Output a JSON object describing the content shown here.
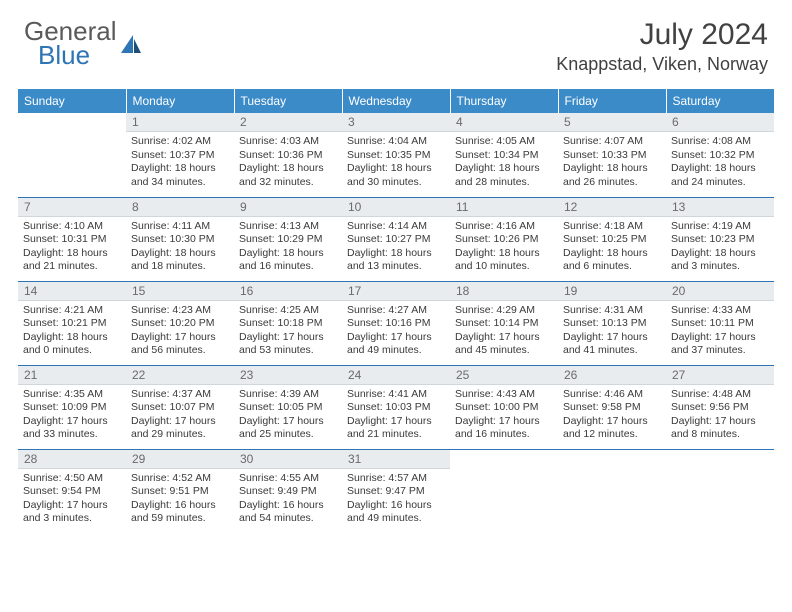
{
  "brand": {
    "part1": "General",
    "part2": "Blue"
  },
  "title": "July 2024",
  "location": "Knappstad, Viken, Norway",
  "colors": {
    "header_bg": "#3b8bc9",
    "accent_blue": "#2e75b6",
    "daynum_bg": "#e8ecef",
    "text_dark": "#414141",
    "text_gray": "#5a5a5a"
  },
  "weekdays": [
    "Sunday",
    "Monday",
    "Tuesday",
    "Wednesday",
    "Thursday",
    "Friday",
    "Saturday"
  ],
  "weeks": [
    [
      {
        "n": "",
        "lines": []
      },
      {
        "n": "1",
        "lines": [
          "Sunrise: 4:02 AM",
          "Sunset: 10:37 PM",
          "Daylight: 18 hours",
          "and 34 minutes."
        ]
      },
      {
        "n": "2",
        "lines": [
          "Sunrise: 4:03 AM",
          "Sunset: 10:36 PM",
          "Daylight: 18 hours",
          "and 32 minutes."
        ]
      },
      {
        "n": "3",
        "lines": [
          "Sunrise: 4:04 AM",
          "Sunset: 10:35 PM",
          "Daylight: 18 hours",
          "and 30 minutes."
        ]
      },
      {
        "n": "4",
        "lines": [
          "Sunrise: 4:05 AM",
          "Sunset: 10:34 PM",
          "Daylight: 18 hours",
          "and 28 minutes."
        ]
      },
      {
        "n": "5",
        "lines": [
          "Sunrise: 4:07 AM",
          "Sunset: 10:33 PM",
          "Daylight: 18 hours",
          "and 26 minutes."
        ]
      },
      {
        "n": "6",
        "lines": [
          "Sunrise: 4:08 AM",
          "Sunset: 10:32 PM",
          "Daylight: 18 hours",
          "and 24 minutes."
        ]
      }
    ],
    [
      {
        "n": "7",
        "lines": [
          "Sunrise: 4:10 AM",
          "Sunset: 10:31 PM",
          "Daylight: 18 hours",
          "and 21 minutes."
        ]
      },
      {
        "n": "8",
        "lines": [
          "Sunrise: 4:11 AM",
          "Sunset: 10:30 PM",
          "Daylight: 18 hours",
          "and 18 minutes."
        ]
      },
      {
        "n": "9",
        "lines": [
          "Sunrise: 4:13 AM",
          "Sunset: 10:29 PM",
          "Daylight: 18 hours",
          "and 16 minutes."
        ]
      },
      {
        "n": "10",
        "lines": [
          "Sunrise: 4:14 AM",
          "Sunset: 10:27 PM",
          "Daylight: 18 hours",
          "and 13 minutes."
        ]
      },
      {
        "n": "11",
        "lines": [
          "Sunrise: 4:16 AM",
          "Sunset: 10:26 PM",
          "Daylight: 18 hours",
          "and 10 minutes."
        ]
      },
      {
        "n": "12",
        "lines": [
          "Sunrise: 4:18 AM",
          "Sunset: 10:25 PM",
          "Daylight: 18 hours",
          "and 6 minutes."
        ]
      },
      {
        "n": "13",
        "lines": [
          "Sunrise: 4:19 AM",
          "Sunset: 10:23 PM",
          "Daylight: 18 hours",
          "and 3 minutes."
        ]
      }
    ],
    [
      {
        "n": "14",
        "lines": [
          "Sunrise: 4:21 AM",
          "Sunset: 10:21 PM",
          "Daylight: 18 hours",
          "and 0 minutes."
        ]
      },
      {
        "n": "15",
        "lines": [
          "Sunrise: 4:23 AM",
          "Sunset: 10:20 PM",
          "Daylight: 17 hours",
          "and 56 minutes."
        ]
      },
      {
        "n": "16",
        "lines": [
          "Sunrise: 4:25 AM",
          "Sunset: 10:18 PM",
          "Daylight: 17 hours",
          "and 53 minutes."
        ]
      },
      {
        "n": "17",
        "lines": [
          "Sunrise: 4:27 AM",
          "Sunset: 10:16 PM",
          "Daylight: 17 hours",
          "and 49 minutes."
        ]
      },
      {
        "n": "18",
        "lines": [
          "Sunrise: 4:29 AM",
          "Sunset: 10:14 PM",
          "Daylight: 17 hours",
          "and 45 minutes."
        ]
      },
      {
        "n": "19",
        "lines": [
          "Sunrise: 4:31 AM",
          "Sunset: 10:13 PM",
          "Daylight: 17 hours",
          "and 41 minutes."
        ]
      },
      {
        "n": "20",
        "lines": [
          "Sunrise: 4:33 AM",
          "Sunset: 10:11 PM",
          "Daylight: 17 hours",
          "and 37 minutes."
        ]
      }
    ],
    [
      {
        "n": "21",
        "lines": [
          "Sunrise: 4:35 AM",
          "Sunset: 10:09 PM",
          "Daylight: 17 hours",
          "and 33 minutes."
        ]
      },
      {
        "n": "22",
        "lines": [
          "Sunrise: 4:37 AM",
          "Sunset: 10:07 PM",
          "Daylight: 17 hours",
          "and 29 minutes."
        ]
      },
      {
        "n": "23",
        "lines": [
          "Sunrise: 4:39 AM",
          "Sunset: 10:05 PM",
          "Daylight: 17 hours",
          "and 25 minutes."
        ]
      },
      {
        "n": "24",
        "lines": [
          "Sunrise: 4:41 AM",
          "Sunset: 10:03 PM",
          "Daylight: 17 hours",
          "and 21 minutes."
        ]
      },
      {
        "n": "25",
        "lines": [
          "Sunrise: 4:43 AM",
          "Sunset: 10:00 PM",
          "Daylight: 17 hours",
          "and 16 minutes."
        ]
      },
      {
        "n": "26",
        "lines": [
          "Sunrise: 4:46 AM",
          "Sunset: 9:58 PM",
          "Daylight: 17 hours",
          "and 12 minutes."
        ]
      },
      {
        "n": "27",
        "lines": [
          "Sunrise: 4:48 AM",
          "Sunset: 9:56 PM",
          "Daylight: 17 hours",
          "and 8 minutes."
        ]
      }
    ],
    [
      {
        "n": "28",
        "lines": [
          "Sunrise: 4:50 AM",
          "Sunset: 9:54 PM",
          "Daylight: 17 hours",
          "and 3 minutes."
        ]
      },
      {
        "n": "29",
        "lines": [
          "Sunrise: 4:52 AM",
          "Sunset: 9:51 PM",
          "Daylight: 16 hours",
          "and 59 minutes."
        ]
      },
      {
        "n": "30",
        "lines": [
          "Sunrise: 4:55 AM",
          "Sunset: 9:49 PM",
          "Daylight: 16 hours",
          "and 54 minutes."
        ]
      },
      {
        "n": "31",
        "lines": [
          "Sunrise: 4:57 AM",
          "Sunset: 9:47 PM",
          "Daylight: 16 hours",
          "and 49 minutes."
        ]
      },
      {
        "n": "",
        "lines": []
      },
      {
        "n": "",
        "lines": []
      },
      {
        "n": "",
        "lines": []
      }
    ]
  ]
}
